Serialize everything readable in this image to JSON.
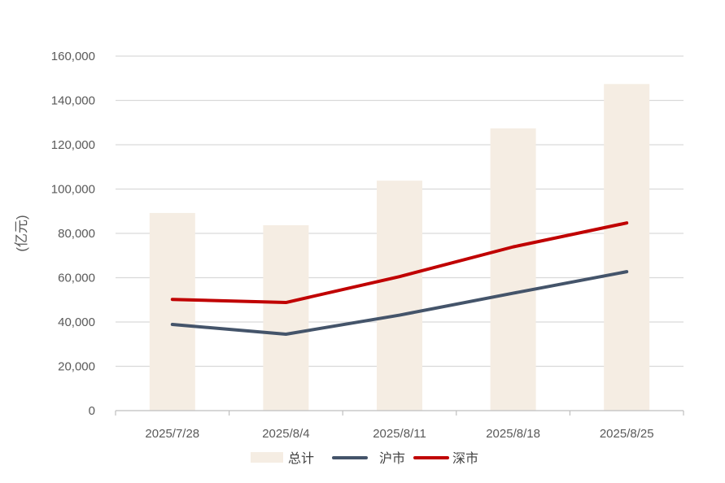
{
  "chart_data": {
    "type": "bar+line",
    "title": "",
    "ylabel": "(亿元)",
    "xlabel": "",
    "categories": [
      "2025/7/28",
      "2025/8/4",
      "2025/8/11",
      "2025/8/18",
      "2025/8/25"
    ],
    "ylim": [
      0,
      160000
    ],
    "yticks": [
      0,
      20000,
      40000,
      60000,
      80000,
      100000,
      120000,
      140000,
      160000
    ],
    "ytick_labels": [
      "0",
      "20,000",
      "40,000",
      "60,000",
      "80,000",
      "100,000",
      "120,000",
      "140,000",
      "160,000"
    ],
    "grid": true,
    "legend_position": "bottom",
    "series": [
      {
        "name": "总计",
        "kind": "bar",
        "color": "#F5EDE3",
        "values": [
          89200,
          83700,
          103800,
          127400,
          147400
        ]
      },
      {
        "name": "沪市",
        "kind": "line",
        "color": "#44546A",
        "values": [
          38900,
          34500,
          43100,
          53000,
          62700
        ]
      },
      {
        "name": "深市",
        "kind": "line",
        "color": "#C00000",
        "values": [
          50200,
          48800,
          60500,
          73900,
          84700
        ]
      }
    ]
  }
}
